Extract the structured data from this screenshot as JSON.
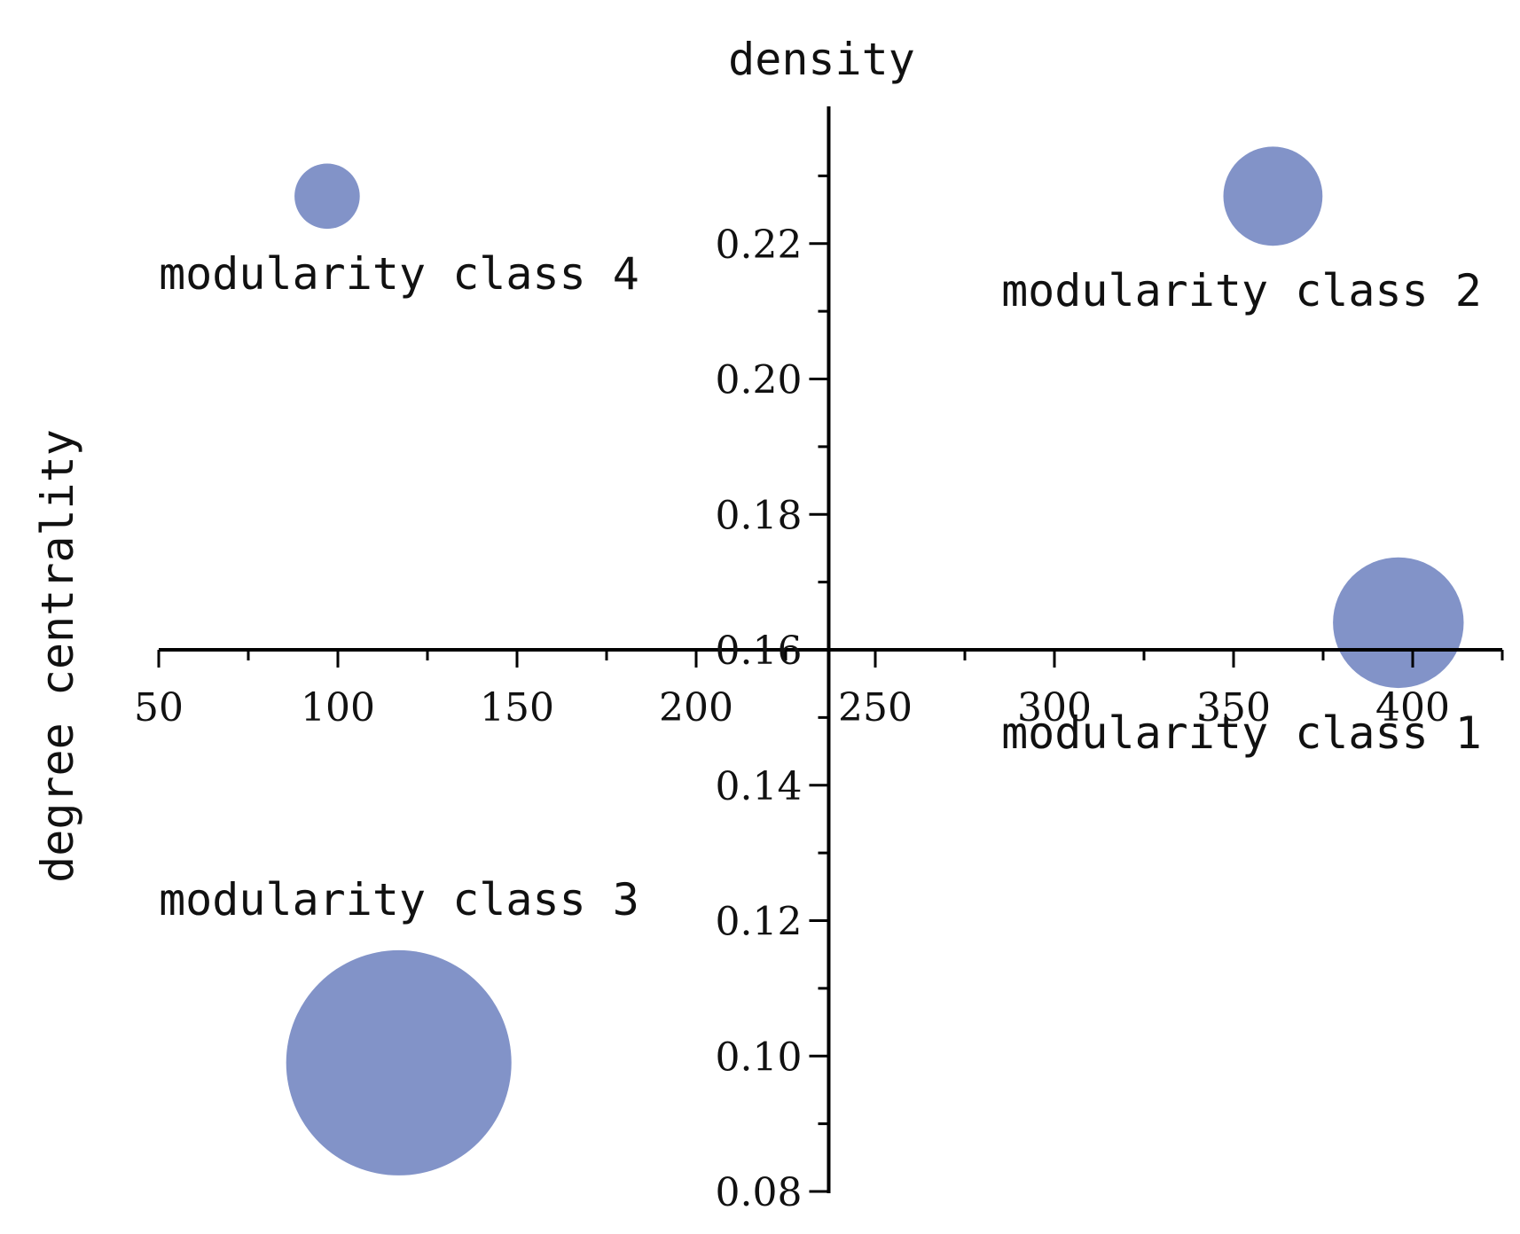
{
  "chart_data": {
    "type": "scatter",
    "variant": "bubble",
    "title": "",
    "xlabel": "degree centrality",
    "ylabel": "density",
    "xlim": [
      50,
      425
    ],
    "ylim": [
      0.08,
      0.24
    ],
    "x_ticks": [
      50,
      100,
      150,
      200,
      250,
      300,
      350,
      400
    ],
    "x_tick_labels": [
      "50",
      "100",
      "150",
      "200",
      "250",
      "300",
      "350",
      "400"
    ],
    "y_ticks": [
      0.08,
      0.1,
      0.12,
      0.14,
      0.16,
      0.18,
      0.2,
      0.22
    ],
    "y_tick_labels": [
      "0.08",
      "0.10",
      "0.12",
      "0.14",
      "0.16",
      "0.18",
      "0.20",
      "0.22"
    ],
    "axes_cross": {
      "x_at_y": 0.16,
      "y_at_x": 237
    },
    "bubble_color": "#8293c8",
    "grid": false,
    "points": [
      {
        "label": "modularity class 1",
        "x": 396,
        "y": 0.164,
        "relative_size": 0.58,
        "label_position": "below"
      },
      {
        "label": "modularity class 2",
        "x": 361,
        "y": 0.227,
        "relative_size": 0.44,
        "label_position": "below"
      },
      {
        "label": "modularity class 3",
        "x": 117,
        "y": 0.099,
        "relative_size": 1.0,
        "label_position": "above"
      },
      {
        "label": "modularity class 4",
        "x": 97,
        "y": 0.227,
        "relative_size": 0.29,
        "label_position": "below"
      }
    ]
  }
}
